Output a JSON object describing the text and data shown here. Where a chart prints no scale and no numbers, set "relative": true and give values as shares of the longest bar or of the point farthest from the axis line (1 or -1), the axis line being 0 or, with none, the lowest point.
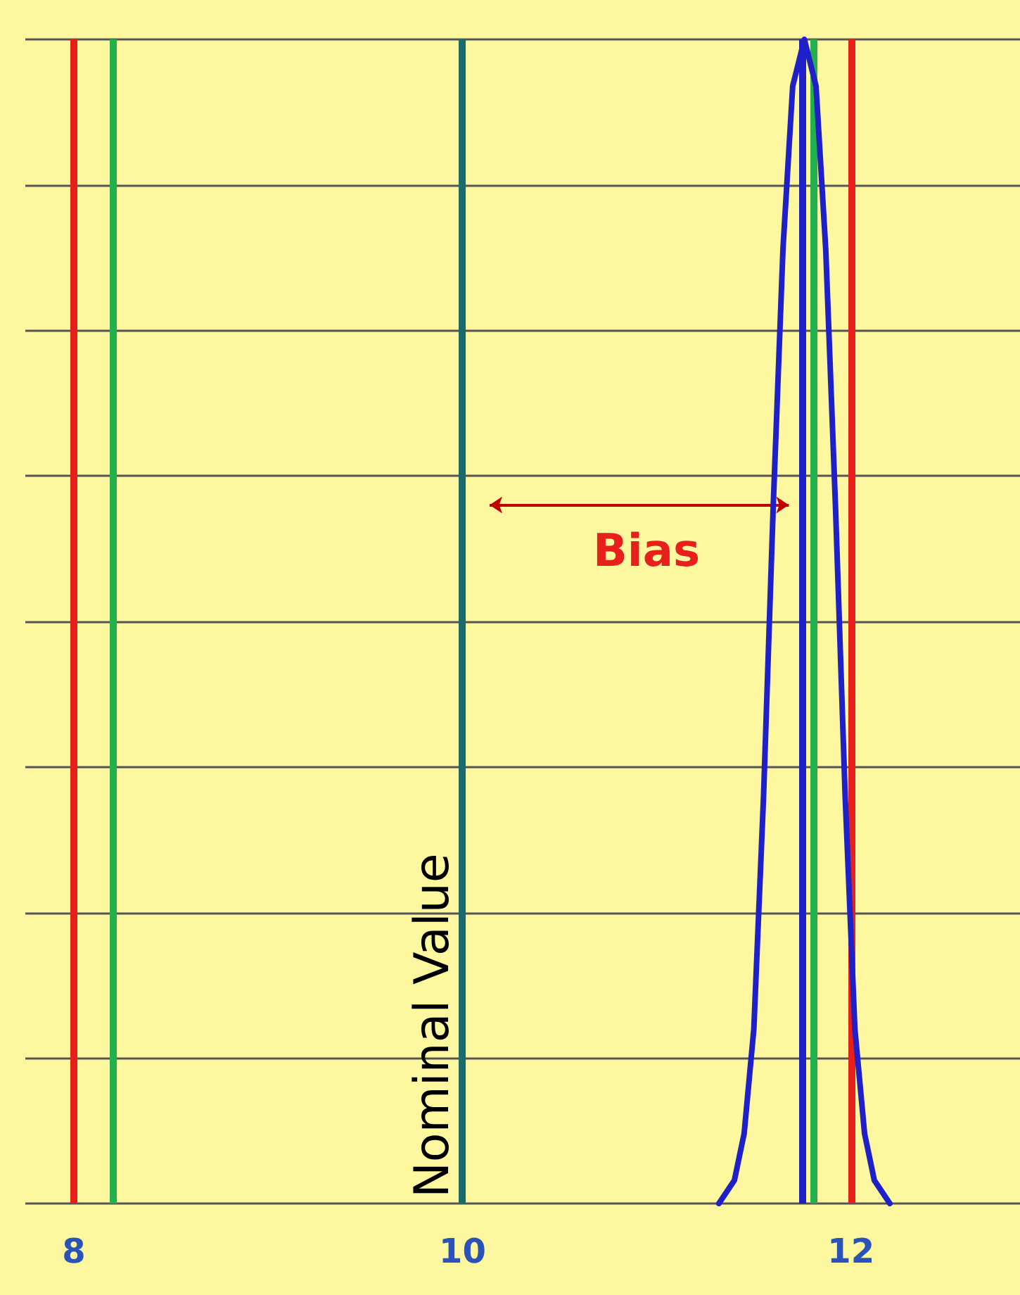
{
  "chart_data": {
    "type": "line",
    "relative": true,
    "x": [
      11.32,
      11.4,
      11.45,
      11.5,
      11.55,
      11.6,
      11.65,
      11.7,
      11.76,
      11.82,
      11.87,
      11.92,
      11.97,
      12.02,
      12.07,
      12.12,
      12.2
    ],
    "series": [
      {
        "color": "#2020c8",
        "values": [
          0,
          0.02,
          0.06,
          0.15,
          0.35,
          0.6,
          0.82,
          0.96,
          1,
          0.96,
          0.82,
          0.6,
          0.35,
          0.15,
          0.06,
          0.02,
          0
        ]
      }
    ],
    "xlim": [
      7.75,
      12.87
    ],
    "xticks": [
      8,
      10,
      12
    ],
    "ref_lines": [
      {
        "axis": "x",
        "value": 8,
        "color": "#e8201c"
      },
      {
        "axis": "x",
        "value": 8.2,
        "color": "#22b04c"
      },
      {
        "axis": "x",
        "value": 10,
        "label": "Nominal Value",
        "color": "#1a6b6b"
      },
      {
        "axis": "x",
        "value": 11.75,
        "color": "#2020c8"
      },
      {
        "axis": "x",
        "value": 11.81,
        "color": "#22b04c"
      },
      {
        "axis": "x",
        "value": 12,
        "color": "#e8201c"
      }
    ],
    "annotations": [
      "Bias"
    ],
    "grid": "y",
    "marker": "none",
    "line_style": "solid"
  }
}
